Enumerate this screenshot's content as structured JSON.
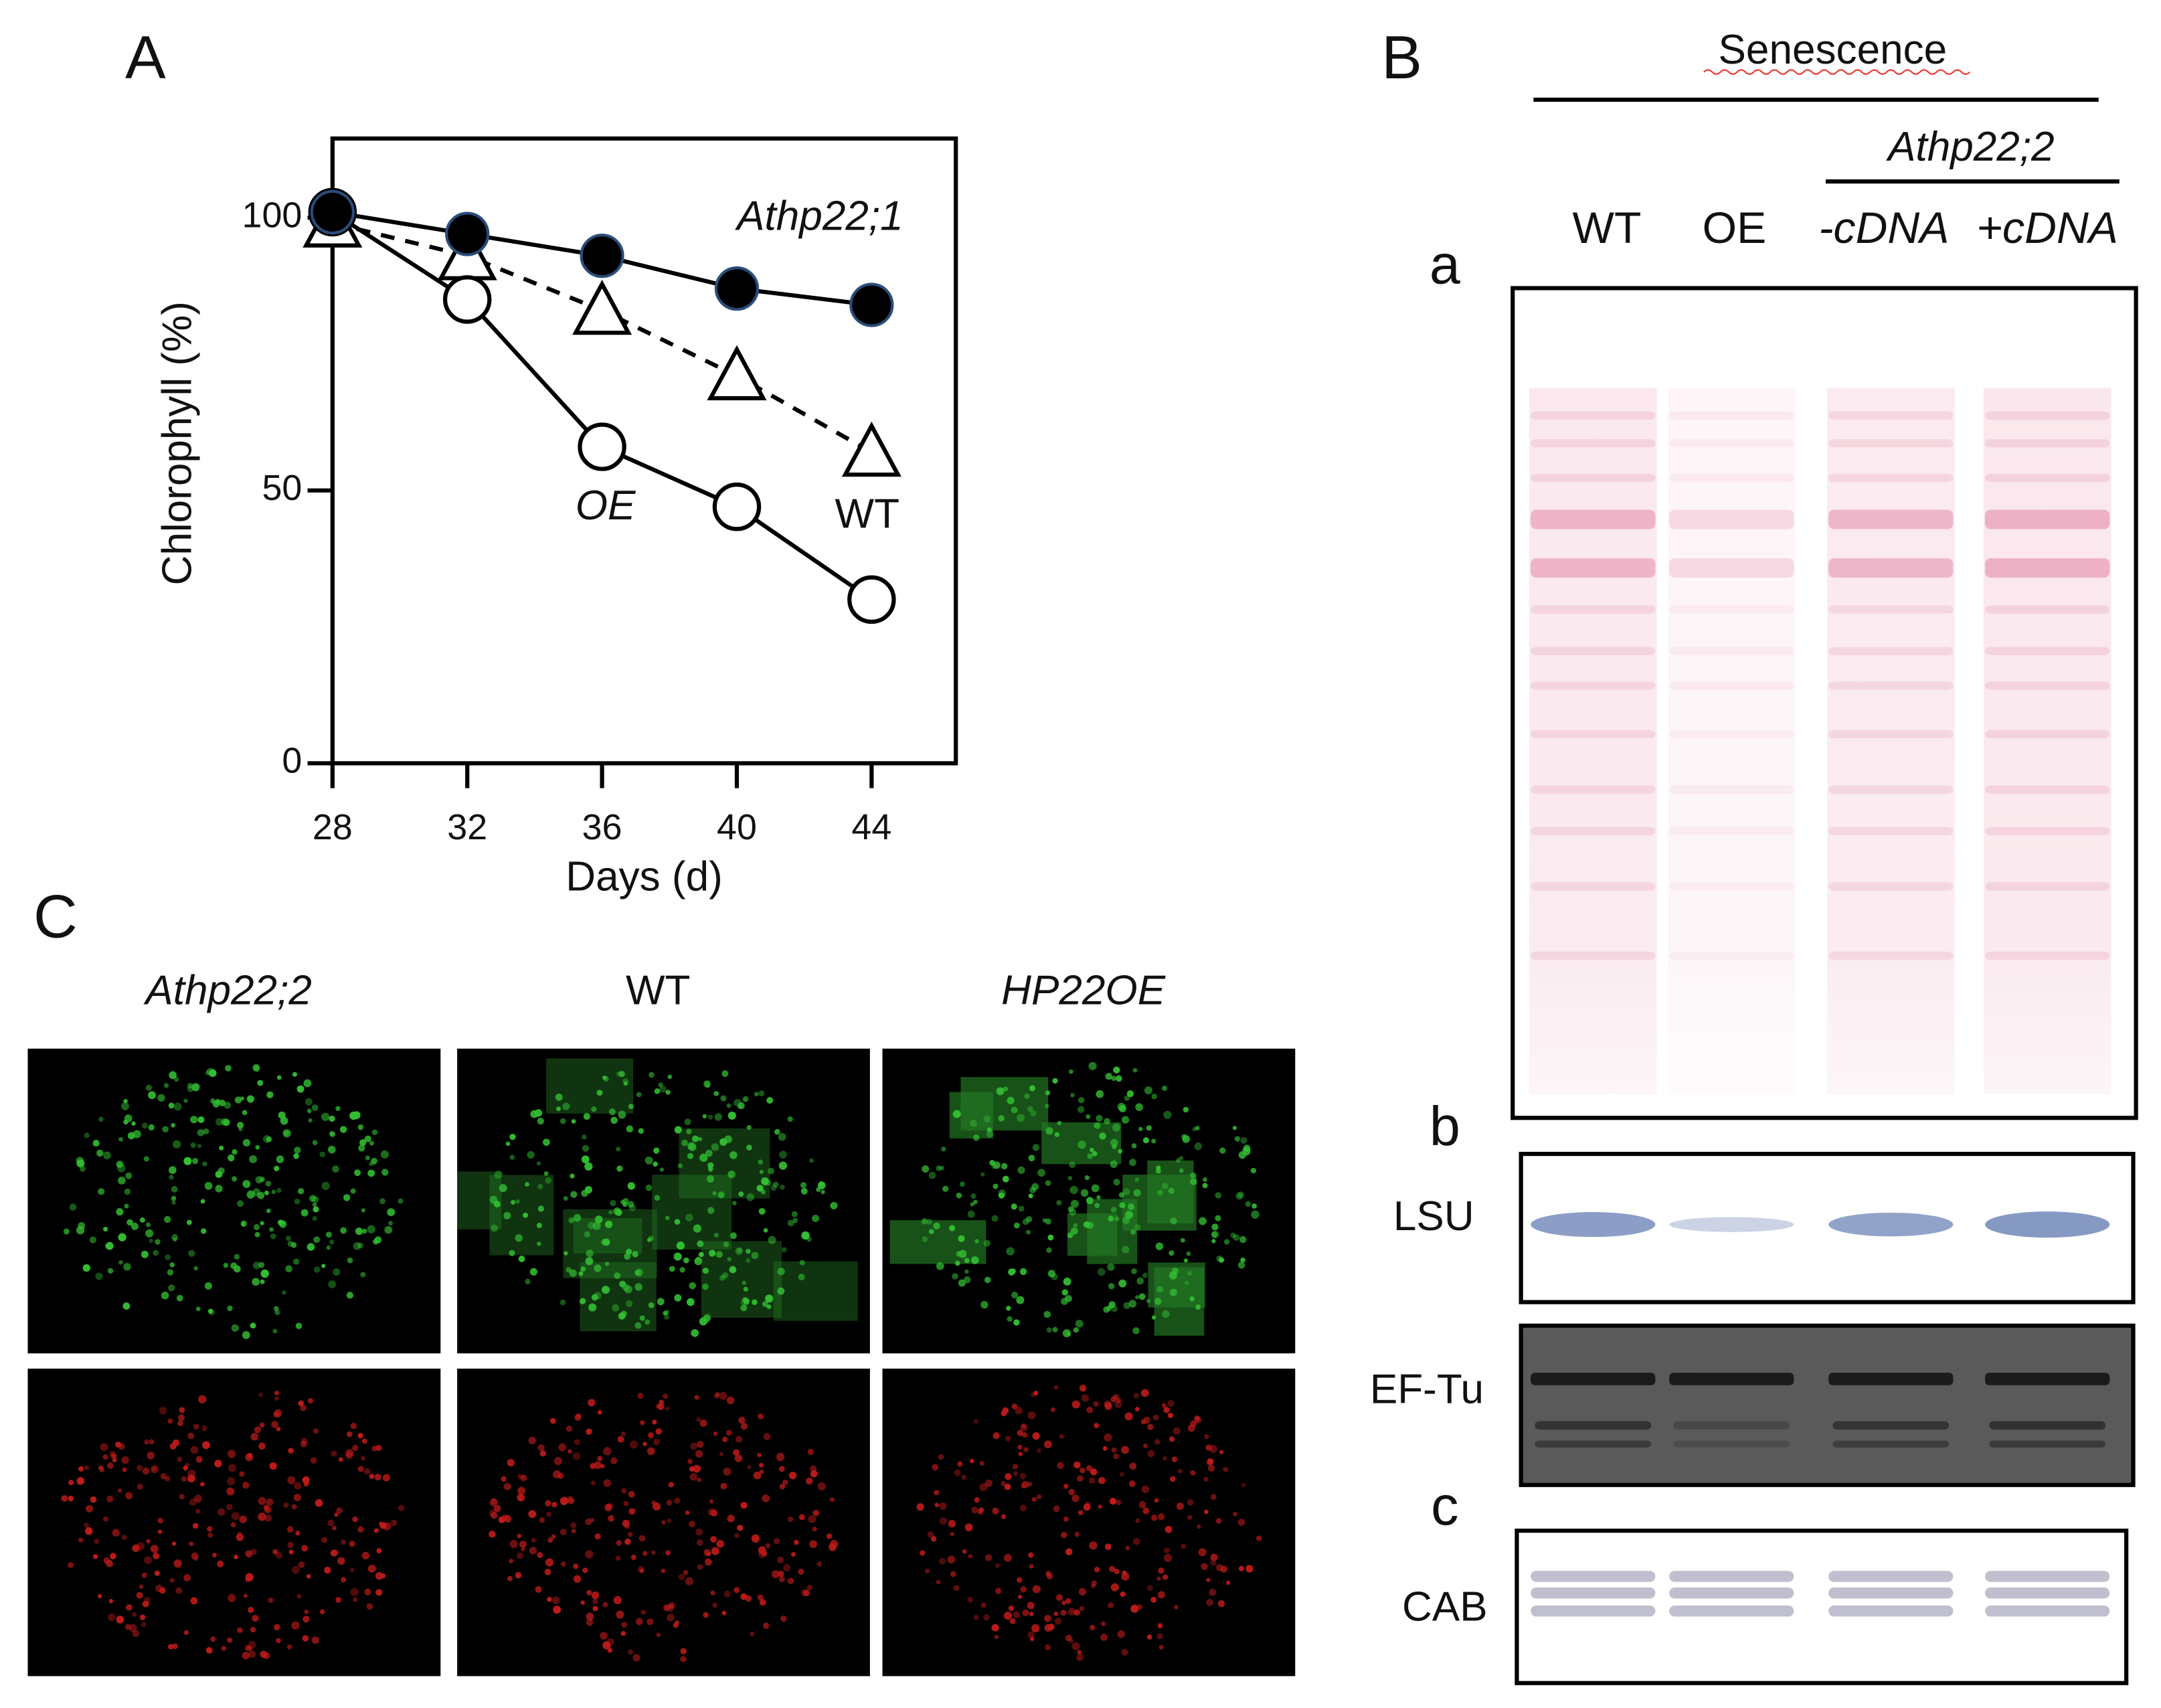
{
  "panel_labels": [
    "A",
    "B",
    "C"
  ],
  "chart_data": {
    "type": "line",
    "x_label": "Days (d)",
    "y_label": "Chlorophyll (%)",
    "x": [
      28,
      32,
      36,
      40,
      44
    ],
    "series": [
      {
        "name": "Athp22;1",
        "color": "#000000",
        "marker": "circle-filled",
        "dashed": false,
        "values": [
          101,
          97,
          93,
          87,
          84
        ]
      },
      {
        "name": "WT",
        "color": "#000000",
        "marker": "triangle-open",
        "dashed": true,
        "values": [
          99,
          93,
          83,
          71,
          57
        ]
      },
      {
        "name": "OE",
        "color": "#000000",
        "marker": "circle-open",
        "dashed": false,
        "values": [
          101,
          85,
          58,
          47,
          30
        ]
      }
    ],
    "xlim": [
      28,
      46.5
    ],
    "ylim": [
      0,
      114.5
    ],
    "xticks": [
      28,
      32,
      36,
      40,
      44
    ],
    "yticks": [
      0,
      50,
      100
    ],
    "grid": false
  },
  "blot": {
    "header": "Senescence",
    "group": "Athp22;2",
    "lanes": [
      "WT",
      "OE",
      "-cDNA",
      "+cDNA"
    ],
    "subpanels": [
      "a",
      "b",
      "c"
    ],
    "rows": [
      "LSU",
      "EF-Tu",
      "CAB"
    ]
  },
  "microscopy": {
    "columns": [
      "Athp22;2",
      "WT",
      "HP22OE"
    ]
  }
}
